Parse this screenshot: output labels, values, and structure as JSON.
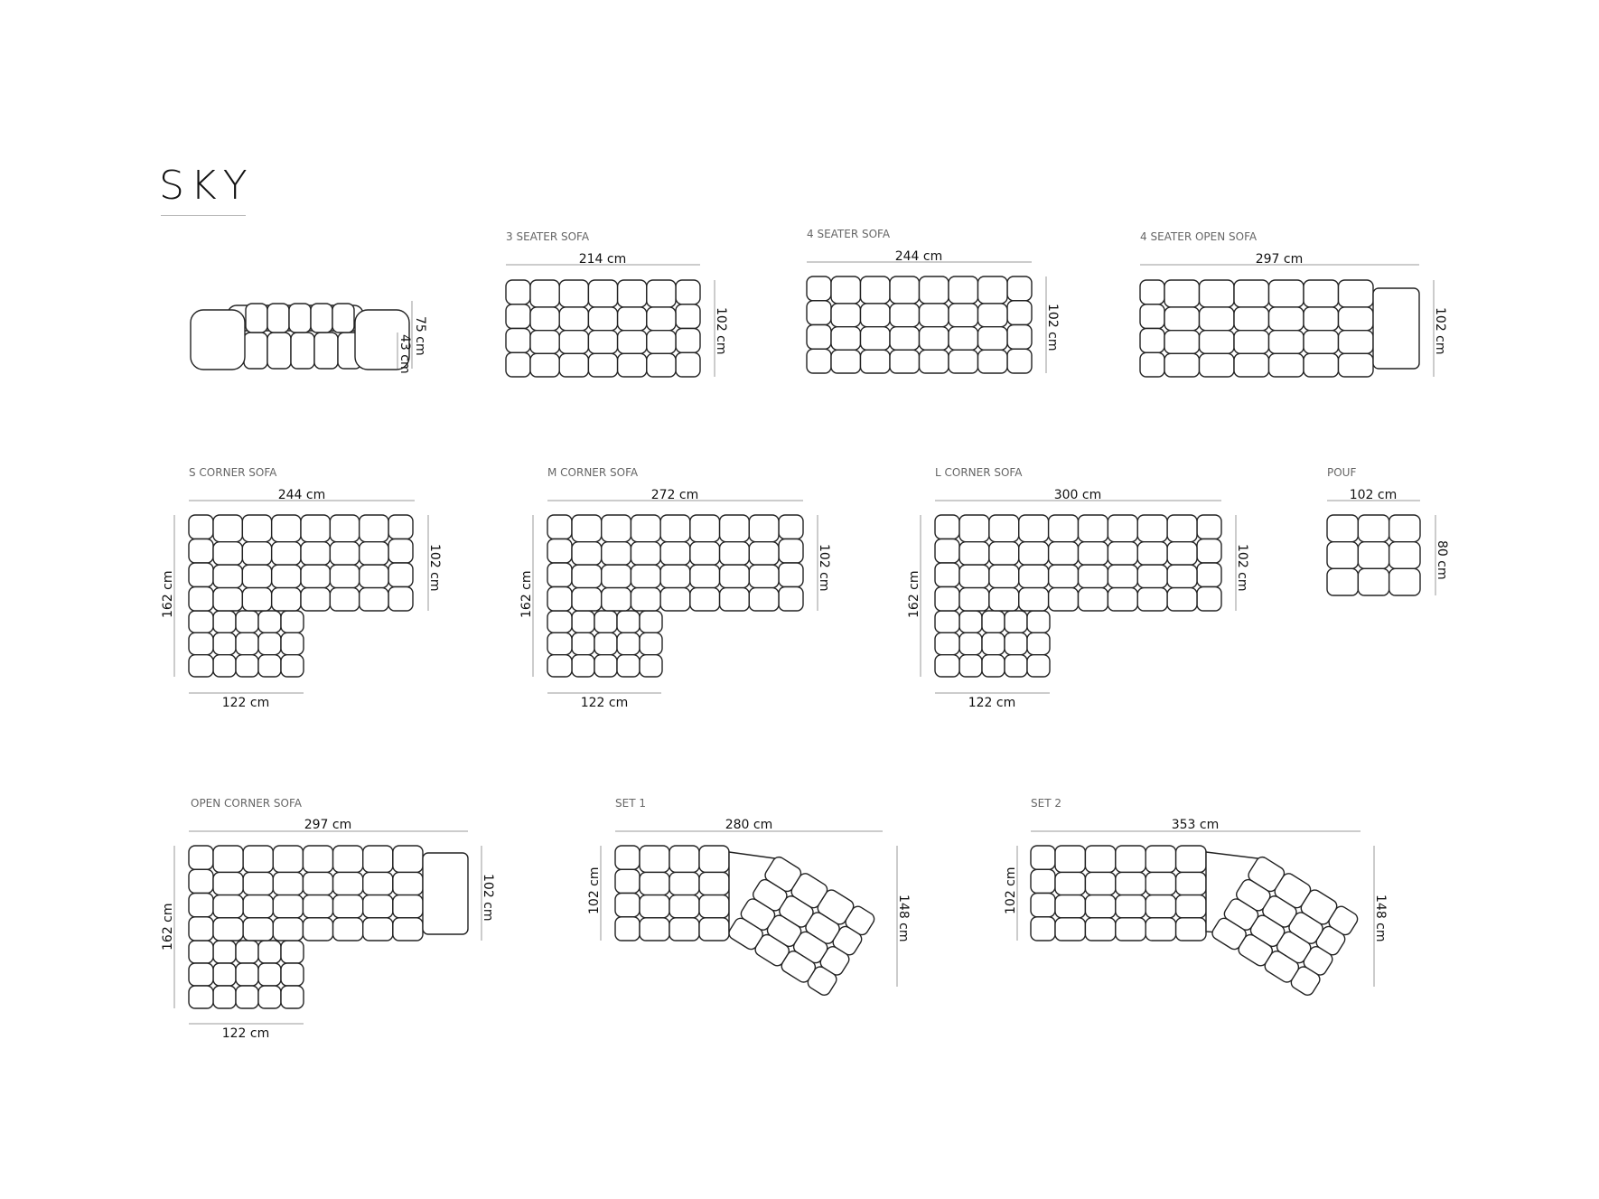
{
  "title": "SKY",
  "front_view": {
    "height_total": "75 cm",
    "seat_height": "43 cm"
  },
  "items": [
    {
      "id": "3-seater",
      "label": "3 SEATER SOFA",
      "width": "214 cm",
      "depth": "102 cm"
    },
    {
      "id": "4-seater",
      "label": "4 SEATER SOFA",
      "width": "244 cm",
      "depth": "102 cm"
    },
    {
      "id": "4-seater-open",
      "label": "4 SEATER OPEN SOFA",
      "width": "297 cm",
      "depth": "102 cm"
    },
    {
      "id": "s-corner",
      "label": "S CORNER SOFA",
      "width": "244 cm",
      "depth": "102 cm",
      "total_depth": "162 cm",
      "leg_width": "122 cm"
    },
    {
      "id": "m-corner",
      "label": "M CORNER SOFA",
      "width": "272 cm",
      "depth": "102 cm",
      "total_depth": "162 cm",
      "leg_width": "122 cm"
    },
    {
      "id": "l-corner",
      "label": "L CORNER SOFA",
      "width": "300 cm",
      "depth": "102 cm",
      "total_depth": "162 cm",
      "leg_width": "122 cm"
    },
    {
      "id": "pouf",
      "label": "POUF",
      "width": "102 cm",
      "depth": "80 cm"
    },
    {
      "id": "open-corner",
      "label": "OPEN CORNER SOFA",
      "width": "297 cm",
      "depth": "102 cm",
      "total_depth": "162 cm",
      "leg_width": "122 cm"
    },
    {
      "id": "set-1",
      "label": "SET 1",
      "width": "280 cm",
      "depth": "102 cm",
      "total_depth": "148 cm"
    },
    {
      "id": "set-2",
      "label": "SET 2",
      "width": "353 cm",
      "depth": "102 cm",
      "total_depth": "148 cm"
    }
  ]
}
